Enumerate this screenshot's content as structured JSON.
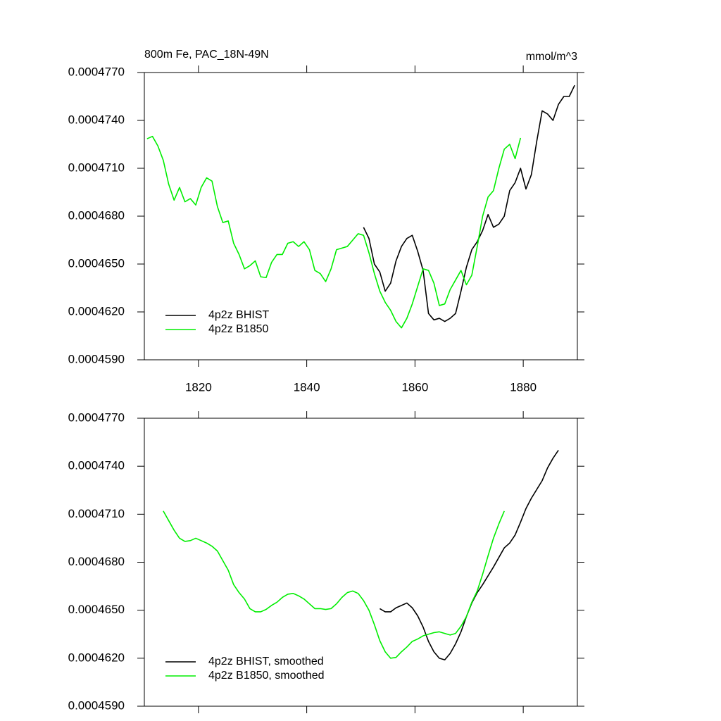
{
  "chart_data": [
    {
      "type": "line",
      "title": "800m Fe, PAC_18N-49N",
      "units": "mmol/m^3",
      "xlim": [
        1810,
        1890
      ],
      "xticks": [
        1820,
        1840,
        1860,
        1880
      ],
      "xtick_labels": true,
      "ylim": [
        0.000459,
        0.000477
      ],
      "yticks": [
        {
          "value": 0.000459,
          "label": "0.0004590"
        },
        {
          "value": 0.000462,
          "label": "0.0004620"
        },
        {
          "value": 0.000465,
          "label": "0.0004650"
        },
        {
          "value": 0.000468,
          "label": "0.0004680"
        },
        {
          "value": 0.000471,
          "label": "0.0004710"
        },
        {
          "value": 0.000474,
          "label": "0.0004740"
        },
        {
          "value": 0.000477,
          "label": "0.0004770"
        }
      ],
      "legend": "lower left",
      "series": [
        {
          "name": "4p2z BHIST",
          "color": "#000000",
          "x": [
            1850.5,
            1851.5,
            1852.5,
            1853.5,
            1854.5,
            1855.5,
            1856.5,
            1857.5,
            1858.5,
            1859.5,
            1860.5,
            1861.5,
            1862.5,
            1863.5,
            1864.5,
            1865.5,
            1866.5,
            1867.5,
            1868.5,
            1869.5,
            1870.5,
            1871.5,
            1872.5,
            1873.5,
            1874.5,
            1875.5,
            1876.5,
            1877.5,
            1878.5,
            1879.5,
            1880.5,
            1881.5,
            1882.5,
            1883.5,
            1884.5,
            1885.5,
            1886.5,
            1887.5,
            1888.5,
            1889.5
          ],
          "values": [
            0.0004673,
            0.0004666,
            0.000465,
            0.0004645,
            0.0004633,
            0.0004638,
            0.0004652,
            0.0004661,
            0.0004666,
            0.0004668,
            0.0004658,
            0.0004646,
            0.0004619,
            0.0004615,
            0.0004616,
            0.0004614,
            0.0004616,
            0.0004619,
            0.0004633,
            0.0004648,
            0.0004659,
            0.0004664,
            0.0004671,
            0.0004681,
            0.0004673,
            0.0004675,
            0.000468,
            0.0004696,
            0.0004701,
            0.000471,
            0.0004697,
            0.0004706,
            0.0004727,
            0.0004746,
            0.0004744,
            0.000474,
            0.000475,
            0.0004755,
            0.0004755,
            0.0004762
          ]
        },
        {
          "name": "4p2z B1850",
          "color": "#00ee00",
          "x": [
            1810.5,
            1811.5,
            1812.5,
            1813.5,
            1814.5,
            1815.5,
            1816.5,
            1817.5,
            1818.5,
            1819.5,
            1820.5,
            1821.5,
            1822.5,
            1823.5,
            1824.5,
            1825.5,
            1826.5,
            1827.5,
            1828.5,
            1829.5,
            1830.5,
            1831.5,
            1832.5,
            1833.5,
            1834.5,
            1835.5,
            1836.5,
            1837.5,
            1838.5,
            1839.5,
            1840.5,
            1841.5,
            1842.5,
            1843.5,
            1844.5,
            1845.5,
            1846.5,
            1847.5,
            1848.5,
            1849.5,
            1850.5,
            1851.5,
            1852.5,
            1853.5,
            1854.5,
            1855.5,
            1856.5,
            1857.5,
            1858.5,
            1859.5,
            1860.5,
            1861.5,
            1862.5,
            1863.5,
            1864.5,
            1865.5,
            1866.5,
            1867.5,
            1868.5,
            1869.5,
            1870.5,
            1871.5,
            1872.5,
            1873.5,
            1874.5,
            1875.5,
            1876.5,
            1877.5,
            1878.5,
            1879.5
          ],
          "values": [
            0.00047285,
            0.000473,
            0.0004724,
            0.0004715,
            0.00047,
            0.000469,
            0.0004698,
            0.0004689,
            0.0004691,
            0.0004687,
            0.0004698,
            0.0004704,
            0.0004702,
            0.0004686,
            0.0004676,
            0.0004677,
            0.0004663,
            0.0004656,
            0.0004647,
            0.0004649,
            0.0004652,
            0.0004642,
            0.00046415,
            0.0004651,
            0.0004656,
            0.0004656,
            0.0004663,
            0.0004664,
            0.0004661,
            0.0004664,
            0.0004659,
            0.0004646,
            0.0004644,
            0.0004639,
            0.0004647,
            0.0004659,
            0.000466,
            0.0004661,
            0.0004665,
            0.0004669,
            0.0004668,
            0.0004657,
            0.0004644,
            0.0004633,
            0.0004626,
            0.0004621,
            0.0004614,
            0.000461,
            0.0004616,
            0.0004625,
            0.0004636,
            0.0004647,
            0.0004646,
            0.0004638,
            0.0004624,
            0.0004625,
            0.0004634,
            0.000464,
            0.0004646,
            0.0004637,
            0.0004643,
            0.0004661,
            0.000468,
            0.0004692,
            0.0004696,
            0.000471,
            0.0004722,
            0.0004725,
            0.0004716,
            0.0004729
          ]
        }
      ]
    },
    {
      "type": "line",
      "xlim": [
        1810,
        1890
      ],
      "xticks": [
        1820,
        1840,
        1860,
        1880
      ],
      "xtick_labels": false,
      "ylim": [
        0.000459,
        0.000477
      ],
      "yticks": [
        {
          "value": 0.000459,
          "label": "0.0004590"
        },
        {
          "value": 0.000462,
          "label": "0.0004620"
        },
        {
          "value": 0.000465,
          "label": "0.0004650"
        },
        {
          "value": 0.000468,
          "label": "0.0004680"
        },
        {
          "value": 0.000471,
          "label": "0.0004710"
        },
        {
          "value": 0.000474,
          "label": "0.0004740"
        },
        {
          "value": 0.000477,
          "label": "0.0004770"
        }
      ],
      "legend": "lower left",
      "series": [
        {
          "name": "4p2z BHIST, smoothed",
          "color": "#000000",
          "x": [
            1853.5,
            1854.5,
            1855.5,
            1856.5,
            1857.5,
            1858.5,
            1859.5,
            1860.5,
            1861.5,
            1862.5,
            1863.5,
            1864.5,
            1865.5,
            1866.5,
            1867.5,
            1868.5,
            1869.5,
            1870.5,
            1871.5,
            1872.5,
            1873.5,
            1874.5,
            1875.5,
            1876.5,
            1877.5,
            1878.5,
            1879.5,
            1880.5,
            1881.5,
            1882.5,
            1883.5,
            1884.5,
            1885.5,
            1886.5
          ],
          "values": [
            0.0004651,
            0.0004649,
            0.0004649,
            0.00046515,
            0.0004653,
            0.00046545,
            0.00046515,
            0.00046465,
            0.00046395,
            0.00046305,
            0.0004624,
            0.000462,
            0.0004619,
            0.0004623,
            0.0004629,
            0.00046365,
            0.0004646,
            0.00046545,
            0.0004661,
            0.0004666,
            0.00046715,
            0.0004677,
            0.0004683,
            0.0004689,
            0.0004692,
            0.0004697,
            0.0004705,
            0.00047135,
            0.000472,
            0.00047255,
            0.0004731,
            0.0004739,
            0.0004745,
            0.000475
          ]
        },
        {
          "name": "4p2z B1850, smoothed",
          "color": "#00ee00",
          "x": [
            1813.5,
            1814.5,
            1815.5,
            1816.5,
            1817.5,
            1818.5,
            1819.5,
            1820.5,
            1821.5,
            1822.5,
            1823.5,
            1824.5,
            1825.5,
            1826.5,
            1827.5,
            1828.5,
            1829.5,
            1830.5,
            1831.5,
            1832.5,
            1833.5,
            1834.5,
            1835.5,
            1836.5,
            1837.5,
            1838.5,
            1839.5,
            1840.5,
            1841.5,
            1842.5,
            1843.5,
            1844.5,
            1845.5,
            1846.5,
            1847.5,
            1848.5,
            1849.5,
            1850.5,
            1851.5,
            1852.5,
            1853.5,
            1854.5,
            1855.5,
            1856.5,
            1857.5,
            1858.5,
            1859.5,
            1860.5,
            1861.5,
            1862.5,
            1863.5,
            1864.5,
            1865.5,
            1866.5,
            1867.5,
            1868.5,
            1869.5,
            1870.5,
            1871.5,
            1872.5,
            1873.5,
            1874.5,
            1875.5,
            1876.5
          ],
          "values": [
            0.0004712,
            0.0004706,
            0.00047,
            0.0004695,
            0.0004693,
            0.00046935,
            0.0004695,
            0.00046935,
            0.0004692,
            0.000469,
            0.0004687,
            0.0004681,
            0.0004675,
            0.0004666,
            0.0004661,
            0.0004657,
            0.0004651,
            0.0004649,
            0.0004649,
            0.00046505,
            0.0004653,
            0.0004655,
            0.0004658,
            0.000466,
            0.00046605,
            0.0004659,
            0.0004657,
            0.0004654,
            0.0004651,
            0.0004651,
            0.00046505,
            0.0004651,
            0.0004654,
            0.0004658,
            0.0004661,
            0.0004662,
            0.00046605,
            0.0004656,
            0.000465,
            0.0004641,
            0.0004631,
            0.0004624,
            0.000462,
            0.00046205,
            0.0004624,
            0.0004627,
            0.00046305,
            0.0004632,
            0.0004634,
            0.0004635,
            0.0004636,
            0.00046365,
            0.00046355,
            0.00046345,
            0.00046355,
            0.000464,
            0.0004646,
            0.0004655,
            0.0004662,
            0.00046725,
            0.0004684,
            0.0004695,
            0.0004704,
            0.0004712
          ]
        }
      ]
    }
  ]
}
